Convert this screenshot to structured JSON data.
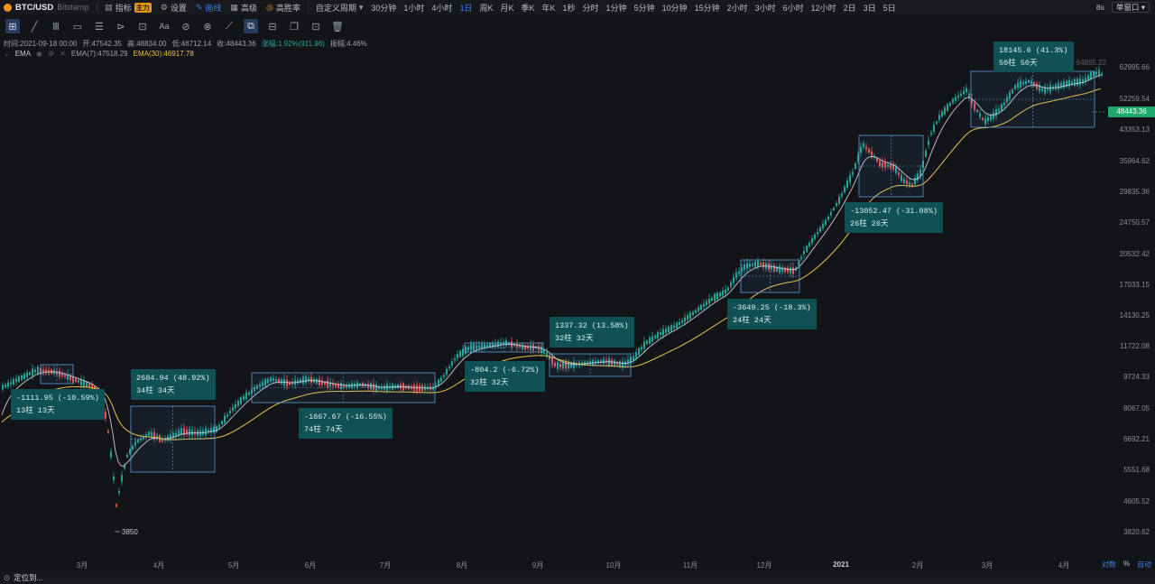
{
  "header": {
    "symbol": "BTC/USD",
    "exchange": "Bitstamp",
    "toolbar": [
      {
        "label": "指标",
        "icon": "indicator-icon",
        "badge": "主力"
      },
      {
        "label": "设置",
        "icon": "settings-icon"
      },
      {
        "label": "画线",
        "icon": "draw-line-icon",
        "active": true
      },
      {
        "label": "高级",
        "icon": "advanced-icon"
      },
      {
        "label": "高胜率",
        "icon": "win-rate-icon",
        "orange": true
      }
    ],
    "custom_period": "自定义周期",
    "intervals": [
      "30分钟",
      "1小时",
      "4小时",
      "1日",
      "周K",
      "月K",
      "季K",
      "年K",
      "1秒",
      "分时",
      "1分钟",
      "5分钟",
      "10分钟",
      "15分钟",
      "2小时",
      "3小时",
      "6小时",
      "12小时",
      "2日",
      "3日",
      "5日"
    ],
    "active_interval": "1日",
    "countdown": "8s",
    "layout": "单窗口"
  },
  "drawing_tools": [
    "cursor-icon",
    "trend-line-icon",
    "parallel-lines-icon",
    "rectangle-icon",
    "fib-icon",
    "pattern-icon",
    "measure-icon",
    "text-icon",
    "magnet-icon",
    "eraser-icon",
    "ruler-icon",
    "measure-range-icon",
    "lock-icon",
    "copy-icon",
    "hide-icon",
    "trash-icon"
  ],
  "ohlc": {
    "time": "时间:2021-09-18 00:00",
    "open": "开:47542.35",
    "high": "高:48834.00",
    "low": "低:46712.14",
    "close": "收:48443.36",
    "change": "涨幅:1.92%(911.96)",
    "amplitude": "振幅:4.46%"
  },
  "ema": {
    "label": "EMA",
    "ema7": "EMA(7):47518.29",
    "ema30": "EMA(30):46917.78"
  },
  "price_axis": {
    "ticks": [
      "62995.66",
      "52259.54",
      "43353.13",
      "35964.62",
      "29835.36",
      "24750.57",
      "20532.42",
      "17033.15",
      "14130.25",
      "11722.08",
      "9724.33",
      "8067.05",
      "6692.21",
      "5551.68",
      "4605.52",
      "3820.62"
    ],
    "current": "48443.36",
    "faded_label": "64895.22",
    "low_label": "3850"
  },
  "time_axis": [
    "3月",
    "4月",
    "5月",
    "6月",
    "7月",
    "8月",
    "9月",
    "10月",
    "11月",
    "12月",
    "2021",
    "2月",
    "3月",
    "4月"
  ],
  "axis_controls": {
    "log": "对数",
    "percent": "%",
    "auto": "自动"
  },
  "status": {
    "goto": "定位到..."
  },
  "measurements": [
    {
      "line1": "-1111.95 (-10.59%)",
      "line2": "13柱 13天"
    },
    {
      "line1": "2684.94 (48.92%)",
      "line2": "34柱 34天"
    },
    {
      "line1": "-1667.67 (-16.55%)",
      "line2": "74柱 74天"
    },
    {
      "line1": "-804.2 (-6.72%)",
      "line2": "32柱 32天"
    },
    {
      "line1": "1337.32 (13.58%)",
      "line2": "32柱 32天"
    },
    {
      "line1": "-3649.25 (-18.3%)",
      "line2": "24柱 24天"
    },
    {
      "line1": "-13052.47 (-31.08%)",
      "line2": "26柱 26天"
    },
    {
      "line1": "18145.6 (41.3%)",
      "line2": "50柱 50天"
    }
  ],
  "colors": {
    "up": "#26a69a",
    "down": "#ef5350",
    "ema7": "#c9ccd3",
    "ema30": "#e6c44a",
    "measure_box": "#0f5154",
    "measure_border": "#5b9bd5",
    "current_price": "#1fa971"
  }
}
